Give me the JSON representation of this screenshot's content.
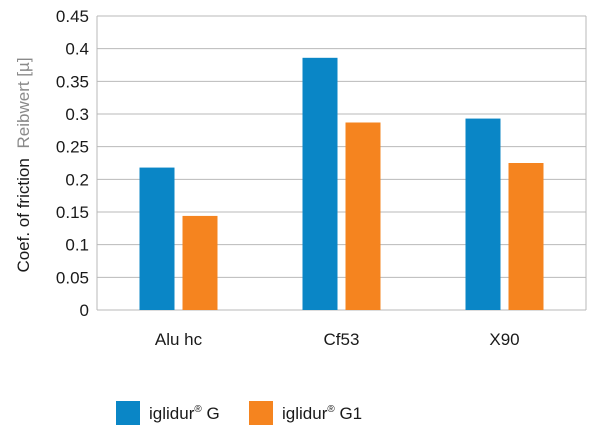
{
  "chart_data": {
    "type": "bar",
    "categories": [
      "Alu hc",
      "Cf53",
      "X90"
    ],
    "series": [
      {
        "name": "iglidur",
        "name_sup": "®",
        "name_suffix": " G",
        "color": "#0a86c6",
        "values": [
          0.218,
          0.386,
          0.293
        ]
      },
      {
        "name": "iglidur",
        "name_sup": "®",
        "name_suffix": " G1",
        "color": "#f5841f",
        "values": [
          0.144,
          0.287,
          0.225
        ]
      }
    ],
    "ylabel": "Coef. of friction",
    "ylabel_secondary": "Reibwert [µ]",
    "ylim": [
      0,
      0.45
    ],
    "yticks": [
      "0",
      "0.05",
      "0.1",
      "0.15",
      "0.2",
      "0.25",
      "0.3",
      "0.35",
      "0.4",
      "0.45"
    ],
    "grid": true,
    "legend_position": "bottom"
  }
}
